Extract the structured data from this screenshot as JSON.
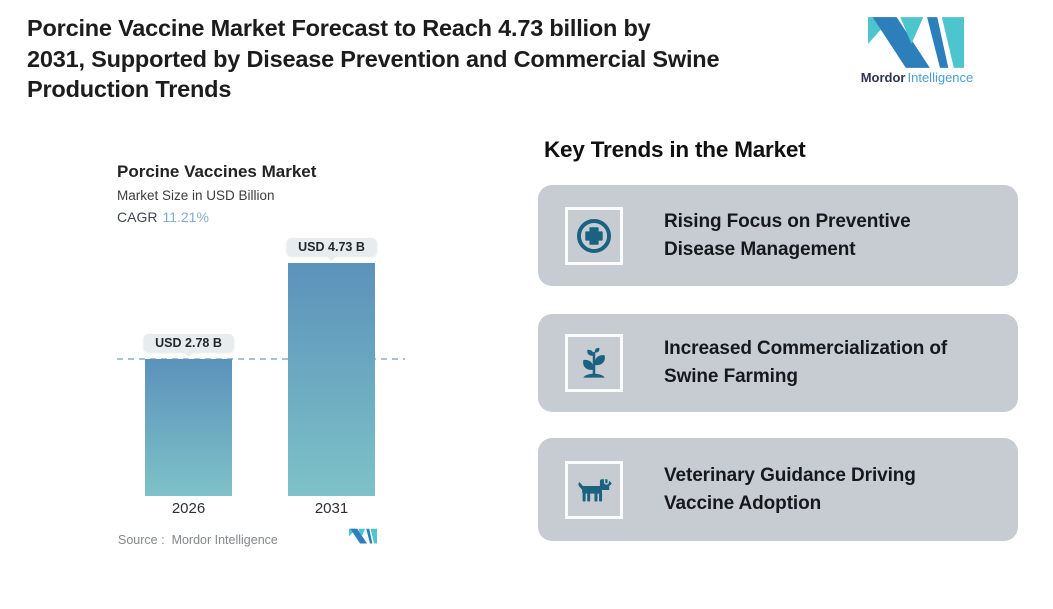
{
  "header": {
    "title_lines": [
      "Porcine Vaccine Market Forecast to Reach 4.73 billion by",
      "2031, Supported by Disease Prevention and Commercial Swine",
      "Production Trends"
    ],
    "brand": {
      "name_bold": "Mordor",
      "name_light": "Intelligence"
    }
  },
  "chart": {
    "title": "Porcine Vaccines Market",
    "subtitle": "Market Size in USD Billion",
    "cagr_label": "CAGR",
    "cagr_value": "11.21%",
    "source_prefix": "Source :",
    "source_name": "Mordor Intelligence"
  },
  "chart_data": {
    "type": "bar",
    "title": "Porcine Vaccines Market",
    "ylabel": "Market Size in USD Billion",
    "unit": "USD Billion",
    "cagr_percent": 11.21,
    "categories": [
      "2026",
      "2031"
    ],
    "values": [
      2.78,
      4.73
    ],
    "value_labels": [
      "USD 2.78 B",
      "USD 4.73 B"
    ],
    "reference_line_value": 2.78,
    "grid": "off",
    "legend": "none",
    "source": "Mordor Intelligence"
  },
  "trends": {
    "heading": "Key Trends in the Market",
    "cards": [
      {
        "icon": "medical-plus-circle-icon",
        "lines": [
          "Rising Focus on Preventive",
          "Disease Management"
        ]
      },
      {
        "icon": "seedling-icon",
        "lines": [
          "Increased Commercialization of",
          "Swine Farming"
        ]
      },
      {
        "icon": "dog-icon",
        "lines": [
          "Veterinary Guidance Driving",
          "Vaccine Adoption"
        ]
      }
    ]
  },
  "colors": {
    "card_bg": "#C7CCD2",
    "icon_teal": "#1B6280",
    "accent_cagr": "#82ADCE",
    "dashed_line": "#A6C2D8",
    "bubble_bg": "#E7ECEE",
    "bar_gradient_top": "#5B92BB",
    "bar_gradient_bottom": "#7EC2C8",
    "logo_teal": "#4DC4CE",
    "logo_blue": "#2C7FBA",
    "brand_navy": "#2B3550",
    "brand_blue": "#4AA0D5"
  }
}
